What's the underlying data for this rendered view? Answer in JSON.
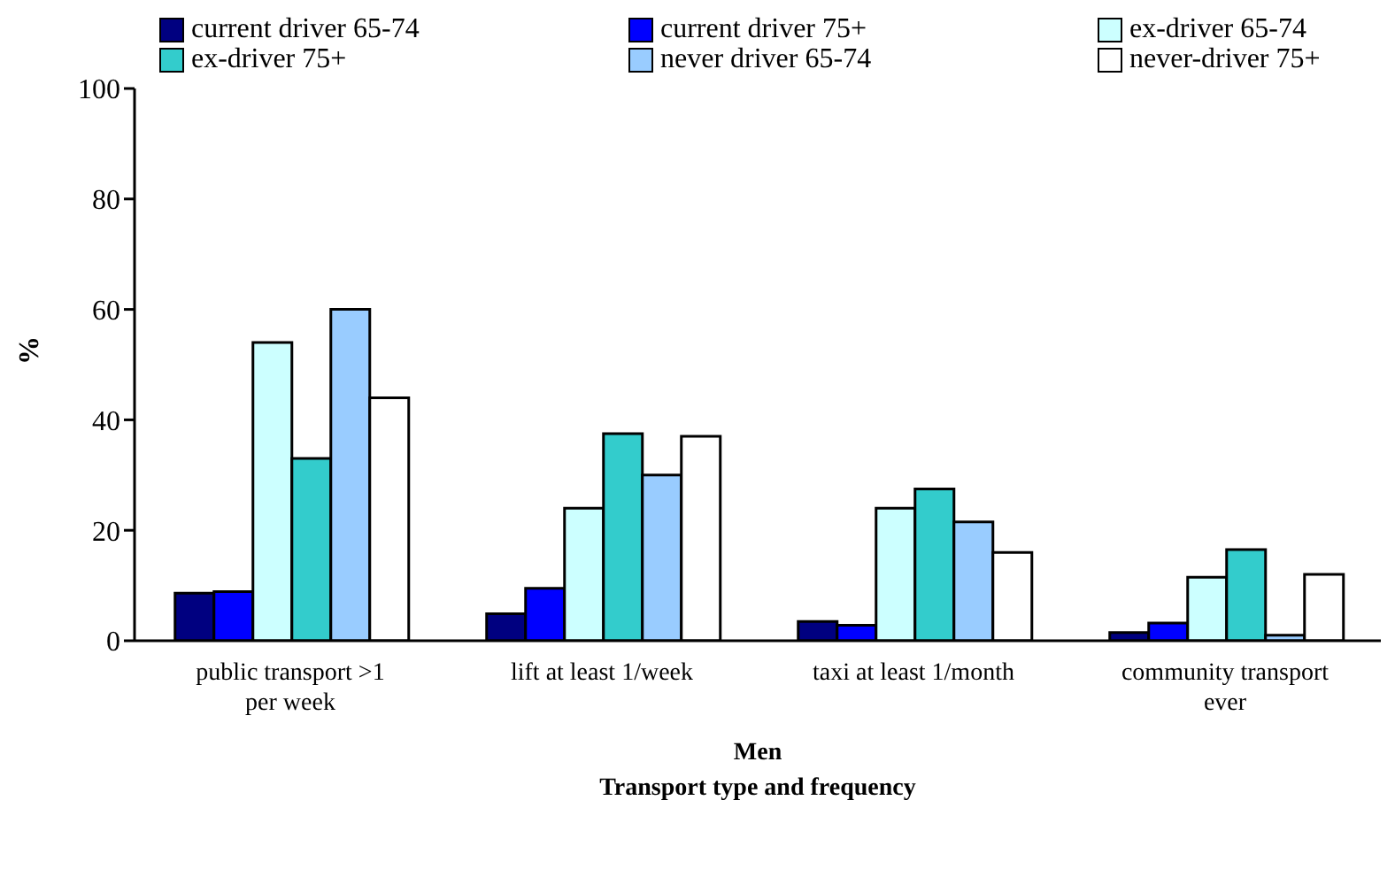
{
  "chart_data": {
    "type": "bar",
    "title": "Men",
    "xlabel": "Transport type and frequency",
    "ylabel": "%",
    "categories": [
      "public transport >1 per week",
      "lift at least 1/week",
      "taxi at least 1/month",
      "community transport ever"
    ],
    "series": [
      {
        "name": "current driver 65-74",
        "color": "#000080",
        "values": [
          8.6,
          4.9,
          3.5,
          1.5
        ]
      },
      {
        "name": "current driver 75+",
        "color": "#0000ff",
        "values": [
          8.9,
          9.5,
          2.8,
          3.2
        ]
      },
      {
        "name": "ex-driver 65-74",
        "color": "#ccffff",
        "values": [
          54,
          24,
          24,
          11.5
        ]
      },
      {
        "name": "ex-driver 75+",
        "color": "#33cccc",
        "values": [
          33,
          37.5,
          27.5,
          16.5
        ]
      },
      {
        "name": "never driver 65-74",
        "color": "#99ccff",
        "values": [
          60,
          30,
          21.5,
          1
        ]
      },
      {
        "name": "never-driver 75+",
        "color": "#ffffff",
        "values": [
          44,
          37,
          16,
          12
        ]
      }
    ],
    "ylim": [
      0,
      100
    ],
    "yticks": [
      0,
      20,
      40,
      60,
      80,
      100
    ],
    "grid": false,
    "legend": "top"
  }
}
